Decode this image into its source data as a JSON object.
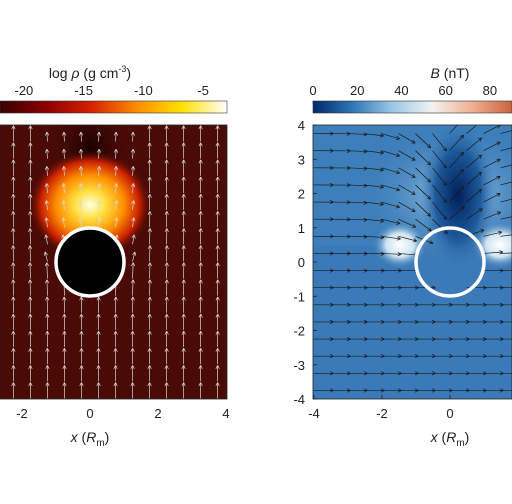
{
  "chart_data": [
    {
      "type": "heatmap",
      "colorbar": {
        "label_main": "log ",
        "label_symbol": "ρ",
        "label_units": " (g cm",
        "label_exp": "-3",
        "label_close": ")",
        "ticks": [
          -20,
          -15,
          -10,
          -5
        ],
        "range": [
          -22,
          -3
        ],
        "colormap": [
          "#3a0000",
          "#8a0000",
          "#d42000",
          "#ff8c00",
          "#ffe000",
          "#ffffff"
        ]
      },
      "xlabel_var": "x",
      "xlabel_unit_open": " (",
      "xlabel_unit": "R",
      "xlabel_unit_sub": "m",
      "xlabel_unit_close": ")",
      "xticks": [
        -2,
        0,
        2,
        4
      ],
      "xlim": [
        -4,
        4
      ],
      "ylim": [
        -4,
        4
      ],
      "background_color": "#4a0a06",
      "body": {
        "center": [
          0,
          0
        ],
        "radius": 1,
        "fill": "#000000",
        "outline": "#ffffff"
      },
      "arrows": {
        "color": "#d8d8d8",
        "description": "flow velocity vectors, mostly pointing +y"
      }
    },
    {
      "type": "heatmap",
      "colorbar": {
        "label_main": "B",
        "label_units": " (nT)",
        "ticks": [
          0,
          20,
          40,
          60,
          80
        ],
        "range": [
          0,
          90
        ],
        "colormap": [
          "#002a6b",
          "#2f76b6",
          "#9cc8e6",
          "#f2f2f2",
          "#f0b090",
          "#c86440"
        ]
      },
      "xlabel_var": "x",
      "xlabel_unit_open": " (",
      "xlabel_unit": "R",
      "xlabel_unit_sub": "m",
      "xlabel_unit_close": ")",
      "xticks": [
        -4,
        -2,
        0,
        2
      ],
      "yticks": [
        -4,
        -3,
        -2,
        -1,
        0,
        1,
        2,
        3,
        4
      ],
      "xlim": [
        -4,
        4
      ],
      "ylim": [
        -4,
        4
      ],
      "background_color": "#3a7ab8",
      "body": {
        "center": [
          0,
          0
        ],
        "radius": 1,
        "fill": "none",
        "outline": "#ffffff"
      },
      "arrows": {
        "color": "#1a1a1a",
        "description": "magnetic field direction vectors, mostly pointing +x"
      }
    }
  ]
}
